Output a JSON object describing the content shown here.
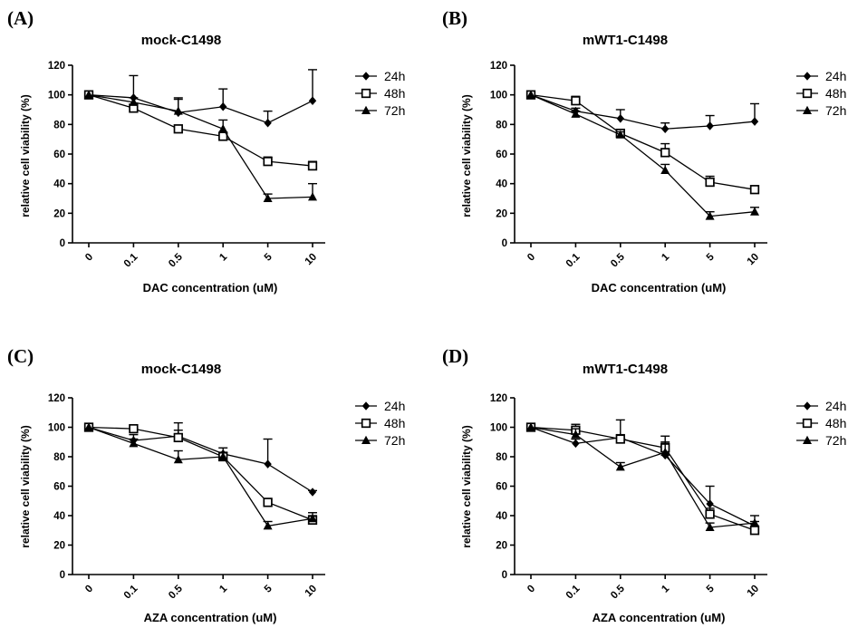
{
  "chart_data": [
    {
      "type": "line",
      "panel": "(A)",
      "title": "mock-C1498",
      "xlabel": "DAC concentration (uM)",
      "ylabel": "relative cell viability (%)",
      "ylim": [
        0,
        120
      ],
      "yticks": [
        0,
        20,
        40,
        60,
        80,
        100,
        120
      ],
      "categories": [
        "0",
        "0.1",
        "0.5",
        "1",
        "5",
        "10"
      ],
      "legend": "right",
      "series": [
        {
          "name": "24h",
          "marker": "diamond",
          "values": [
            100,
            98,
            88,
            92,
            81,
            96
          ],
          "errors": [
            0,
            15,
            10,
            12,
            8,
            21
          ]
        },
        {
          "name": "48h",
          "marker": "square",
          "values": [
            100,
            91,
            77,
            72,
            55,
            52
          ],
          "errors": [
            0,
            2,
            1,
            2,
            3,
            3
          ]
        },
        {
          "name": "72h",
          "marker": "triangle",
          "values": [
            100,
            95,
            89,
            77,
            30,
            31
          ],
          "errors": [
            0,
            3,
            8,
            6,
            3,
            9
          ]
        }
      ]
    },
    {
      "type": "line",
      "panel": "(B)",
      "title": "mWT1-C1498",
      "xlabel": "DAC concentration (uM)",
      "ylabel": "relative cell viability (%)",
      "ylim": [
        0,
        120
      ],
      "yticks": [
        0,
        20,
        40,
        60,
        80,
        100,
        120
      ],
      "categories": [
        "0",
        "0.1",
        "0.5",
        "1",
        "5",
        "10"
      ],
      "legend": "right",
      "series": [
        {
          "name": "24h",
          "marker": "diamond",
          "values": [
            100,
            89,
            84,
            77,
            79,
            82
          ],
          "errors": [
            0,
            2,
            6,
            4,
            7,
            12
          ]
        },
        {
          "name": "48h",
          "marker": "square",
          "values": [
            100,
            96,
            74,
            61,
            41,
            36
          ],
          "errors": [
            0,
            3,
            2,
            6,
            4,
            2
          ]
        },
        {
          "name": "72h",
          "marker": "triangle",
          "values": [
            100,
            87,
            73,
            49,
            18,
            21
          ],
          "errors": [
            0,
            2,
            2,
            4,
            3,
            3
          ]
        }
      ]
    },
    {
      "type": "line",
      "panel": "(C)",
      "title": "mock-C1498",
      "xlabel": "AZA concentration (uM)",
      "ylabel": "relative cell viability (%)",
      "ylim": [
        0,
        120
      ],
      "yticks": [
        0,
        20,
        40,
        60,
        80,
        100,
        120
      ],
      "categories": [
        "0",
        "0.1",
        "0.5",
        "1",
        "5",
        "10"
      ],
      "legend": "right",
      "series": [
        {
          "name": "24h",
          "marker": "diamond",
          "values": [
            100,
            91,
            94,
            82,
            75,
            56
          ],
          "errors": [
            0,
            4,
            4,
            4,
            17,
            1
          ]
        },
        {
          "name": "48h",
          "marker": "square",
          "values": [
            100,
            99,
            93,
            80,
            49,
            37
          ],
          "errors": [
            0,
            2,
            10,
            3,
            2,
            3
          ]
        },
        {
          "name": "72h",
          "marker": "triangle",
          "values": [
            100,
            89,
            78,
            80,
            33,
            38
          ],
          "errors": [
            0,
            3,
            6,
            3,
            3,
            4
          ]
        }
      ]
    },
    {
      "type": "line",
      "panel": "(D)",
      "title": "mWT1-C1498",
      "xlabel": "AZA concentration (uM)",
      "ylabel": "relative cell viability (%)",
      "ylim": [
        0,
        120
      ],
      "yticks": [
        0,
        20,
        40,
        60,
        80,
        100,
        120
      ],
      "categories": [
        "0",
        "0.1",
        "0.5",
        "1",
        "5",
        "10"
      ],
      "legend": "right",
      "series": [
        {
          "name": "24h",
          "marker": "diamond",
          "values": [
            100,
            89,
            93,
            81,
            48,
            33
          ],
          "errors": [
            0,
            3,
            12,
            13,
            12,
            3
          ]
        },
        {
          "name": "48h",
          "marker": "square",
          "values": [
            100,
            98,
            92,
            86,
            41,
            30
          ],
          "errors": [
            0,
            4,
            3,
            4,
            4,
            3
          ]
        },
        {
          "name": "72h",
          "marker": "triangle",
          "values": [
            100,
            95,
            73,
            83,
            32,
            35
          ],
          "errors": [
            0,
            4,
            3,
            6,
            3,
            5
          ]
        }
      ]
    }
  ]
}
